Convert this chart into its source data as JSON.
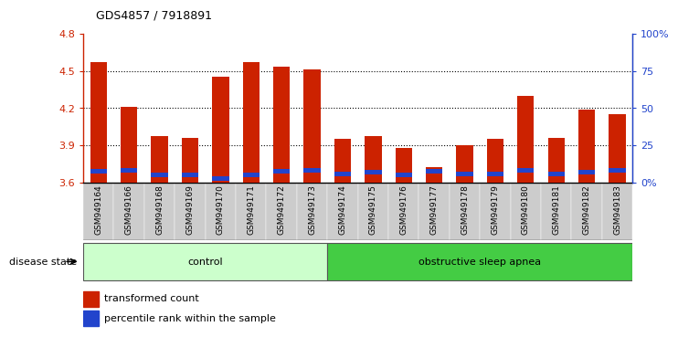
{
  "title": "GDS4857 / 7918891",
  "samples": [
    "GSM949164",
    "GSM949166",
    "GSM949168",
    "GSM949169",
    "GSM949170",
    "GSM949171",
    "GSM949172",
    "GSM949173",
    "GSM949174",
    "GSM949175",
    "GSM949176",
    "GSM949177",
    "GSM949178",
    "GSM949179",
    "GSM949180",
    "GSM949181",
    "GSM949182",
    "GSM949183"
  ],
  "red_values": [
    4.57,
    4.21,
    3.97,
    3.96,
    4.45,
    4.57,
    4.53,
    4.51,
    3.95,
    3.97,
    3.88,
    3.72,
    3.9,
    3.95,
    4.3,
    3.96,
    4.19,
    4.15
  ],
  "blue_values": [
    3.69,
    3.7,
    3.66,
    3.66,
    3.63,
    3.66,
    3.69,
    3.7,
    3.67,
    3.68,
    3.66,
    3.69,
    3.67,
    3.67,
    3.7,
    3.67,
    3.68,
    3.7
  ],
  "ymin": 3.6,
  "ymax": 4.8,
  "yticks_left": [
    3.6,
    3.9,
    4.2,
    4.5,
    4.8
  ],
  "yticks_right": [
    0,
    25,
    50,
    75,
    100
  ],
  "red_color": "#cc2200",
  "blue_color": "#2244cc",
  "n_control": 8,
  "n_osa": 10,
  "control_color_light": "#ccffcc",
  "osa_color_dark": "#44cc44",
  "label_control": "control",
  "label_osa": "obstructive sleep apnea",
  "disease_state_label": "disease state",
  "legend_red": "transformed count",
  "legend_blue": "percentile rank within the sample",
  "bar_width": 0.55,
  "label_bg_color": "#cccccc",
  "grid_yticks": [
    3.9,
    4.2,
    4.5
  ]
}
